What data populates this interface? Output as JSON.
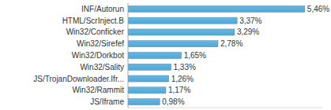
{
  "chart_data": {
    "type": "bar",
    "orientation": "horizontal",
    "categories": [
      "INF/Autorun",
      "HTML/ScrInject.B",
      "Win32/Conficker",
      "Win32/Sirefef",
      "Win32/Dorkbot",
      "Win32/Sality",
      "JS/TrojanDownloader.Ifr...",
      "Win32/Rammit",
      "JS/Iframe"
    ],
    "values": [
      5.46,
      3.37,
      3.29,
      2.78,
      1.65,
      1.33,
      1.26,
      1.17,
      0.98
    ],
    "value_labels": [
      "5,46%",
      "3,37%",
      "3,29%",
      "2,78%",
      "1,65%",
      "1,33%",
      "1,26%",
      "1,17%",
      "0,98%"
    ],
    "color": "#4ea8d8",
    "ylim": [
      0,
      6
    ],
    "data_labels": true,
    "tick_labels": "y",
    "grid": false
  }
}
